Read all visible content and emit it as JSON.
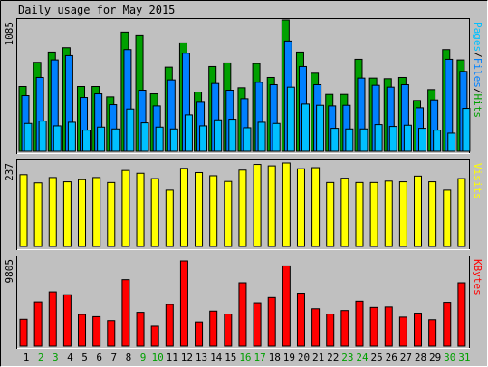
{
  "title": "Daily usage for May 2015",
  "colors": {
    "background": "#c0c0c0",
    "hits": "#00a000",
    "files": "#0080ff",
    "pages": "#00c0ff",
    "visits": "#ffff00",
    "kbytes": "#ff0000",
    "weekend_label": "#00a000",
    "weekday_label": "#000000"
  },
  "chart_data": [
    {
      "type": "bar",
      "panel": "hits-files-pages",
      "ymax_label": "1085",
      "ylim": [
        0,
        1085
      ],
      "legend_parts": [
        "Pages",
        "/",
        "Files",
        "/",
        "Hits"
      ],
      "categories": [
        "1",
        "2",
        "3",
        "4",
        "5",
        "6",
        "7",
        "8",
        "9",
        "10",
        "11",
        "12",
        "13",
        "14",
        "15",
        "16",
        "17",
        "18",
        "19",
        "20",
        "21",
        "22",
        "23",
        "24",
        "25",
        "26",
        "27",
        "28",
        "29",
        "30",
        "31"
      ],
      "weekend": [
        false,
        true,
        true,
        false,
        false,
        false,
        false,
        false,
        true,
        true,
        false,
        false,
        false,
        false,
        false,
        true,
        true,
        false,
        false,
        false,
        false,
        false,
        true,
        true,
        false,
        false,
        false,
        false,
        false,
        true,
        true
      ],
      "series": [
        {
          "name": "Hits",
          "values": [
            535,
            735,
            820,
            855,
            535,
            535,
            450,
            985,
            955,
            475,
            695,
            895,
            490,
            700,
            730,
            525,
            725,
            610,
            1085,
            820,
            645,
            470,
            470,
            760,
            605,
            600,
            610,
            420,
            510,
            840,
            755
          ]
        },
        {
          "name": "Files",
          "values": [
            460,
            610,
            755,
            790,
            445,
            475,
            385,
            840,
            505,
            375,
            590,
            810,
            405,
            560,
            505,
            435,
            570,
            550,
            910,
            700,
            550,
            375,
            380,
            605,
            545,
            530,
            550,
            360,
            425,
            760,
            660
          ]
        },
        {
          "name": "Pages",
          "values": [
            230,
            250,
            210,
            240,
            175,
            200,
            185,
            350,
            235,
            200,
            185,
            300,
            210,
            260,
            265,
            195,
            240,
            230,
            530,
            390,
            380,
            190,
            185,
            185,
            220,
            205,
            215,
            190,
            175,
            150,
            355
          ]
        }
      ]
    },
    {
      "type": "bar",
      "panel": "visits",
      "ymax_label": "237",
      "ylim": [
        0,
        237
      ],
      "legend": "Visits",
      "categories": [
        "1",
        "2",
        "3",
        "4",
        "5",
        "6",
        "7",
        "8",
        "9",
        "10",
        "11",
        "12",
        "13",
        "14",
        "15",
        "16",
        "17",
        "18",
        "19",
        "20",
        "21",
        "22",
        "23",
        "24",
        "25",
        "26",
        "27",
        "28",
        "29",
        "30",
        "31"
      ],
      "series": [
        {
          "name": "Visits",
          "values": [
            204,
            181,
            196,
            184,
            190,
            196,
            182,
            216,
            208,
            193,
            160,
            222,
            210,
            201,
            185,
            217,
            233,
            229,
            237,
            221,
            224,
            182,
            194,
            182,
            182,
            186,
            184,
            200,
            184,
            160,
            193
          ]
        }
      ]
    },
    {
      "type": "bar",
      "panel": "kbytes",
      "ymax_label": "9805",
      "ylim": [
        0,
        9805
      ],
      "legend": "KBytes",
      "categories": [
        "1",
        "2",
        "3",
        "4",
        "5",
        "6",
        "7",
        "8",
        "9",
        "10",
        "11",
        "12",
        "13",
        "14",
        "15",
        "16",
        "17",
        "18",
        "19",
        "20",
        "21",
        "22",
        "23",
        "24",
        "25",
        "26",
        "27",
        "28",
        "29",
        "30",
        "31"
      ],
      "series": [
        {
          "name": "KBytes",
          "values": [
            3100,
            5100,
            6250,
            5920,
            3650,
            3400,
            2950,
            7650,
            3900,
            2300,
            4800,
            9805,
            2800,
            4040,
            3700,
            7300,
            5000,
            5600,
            9240,
            6100,
            4300,
            3700,
            4100,
            5180,
            4450,
            4500,
            3350,
            3800,
            3050,
            5050,
            7300
          ]
        }
      ]
    }
  ]
}
